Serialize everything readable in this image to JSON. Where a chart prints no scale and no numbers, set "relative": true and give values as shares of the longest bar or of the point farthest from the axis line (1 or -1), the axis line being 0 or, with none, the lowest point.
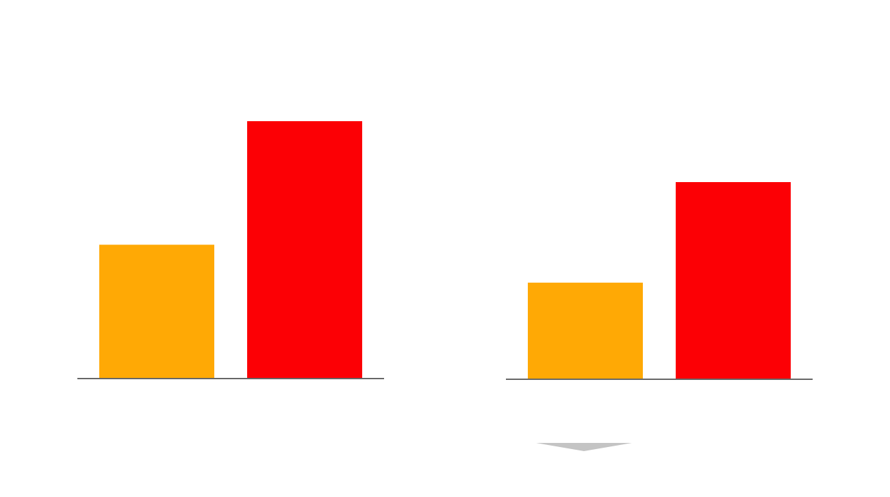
{
  "chart_data": [
    {
      "type": "bar",
      "categories": [
        null,
        null
      ],
      "values": [
        0.52,
        1
      ],
      "colors": [
        "#ffa905",
        "#fc0005"
      ],
      "relative": true
    },
    {
      "type": "bar",
      "categories": [
        null,
        null
      ],
      "values": [
        0.49,
        1
      ],
      "colors": [
        "#ffa905",
        "#fc0005"
      ],
      "relative": true
    }
  ]
}
